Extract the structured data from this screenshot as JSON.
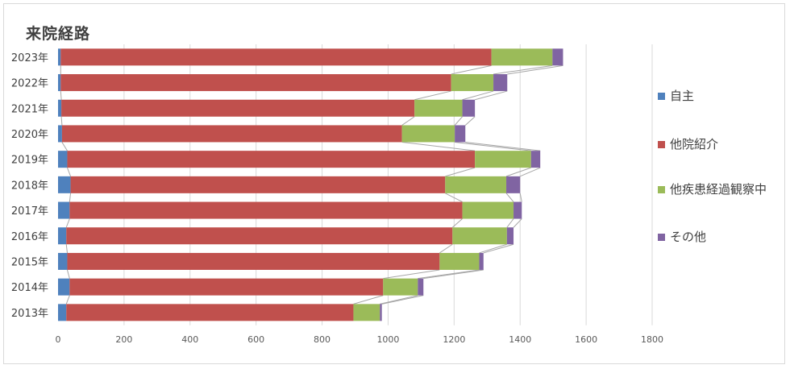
{
  "chart_data": {
    "type": "bar",
    "orientation": "horizontal",
    "stacked": true,
    "title": "来院経路",
    "categories": [
      "2023年",
      "2022年",
      "2021年",
      "2020年",
      "2019年",
      "2018年",
      "2017年",
      "2016年",
      "2015年",
      "2014年",
      "2013年"
    ],
    "series": [
      {
        "name": "自主",
        "color": "#4f81bd",
        "values": [
          8,
          8,
          10,
          12,
          28,
          38,
          35,
          25,
          28,
          35,
          25
        ]
      },
      {
        "name": "他院紹介",
        "color": "#c0504d",
        "values": [
          1305,
          1183,
          1070,
          1030,
          1235,
          1135,
          1190,
          1170,
          1128,
          950,
          870
        ]
      },
      {
        "name": "他疾患経過観察中",
        "color": "#9bbb59",
        "values": [
          185,
          128,
          145,
          160,
          170,
          185,
          155,
          165,
          120,
          105,
          80
        ]
      },
      {
        "name": "その他",
        "color": "#8064a2",
        "values": [
          32,
          42,
          38,
          32,
          28,
          42,
          25,
          20,
          13,
          17,
          6
        ]
      }
    ],
    "xlim": [
      0,
      1800
    ],
    "xticks": [
      0,
      200,
      400,
      600,
      800,
      1000,
      1200,
      1400,
      1600,
      1800
    ],
    "grid": true,
    "series_lines": true,
    "legend_position": "right"
  }
}
